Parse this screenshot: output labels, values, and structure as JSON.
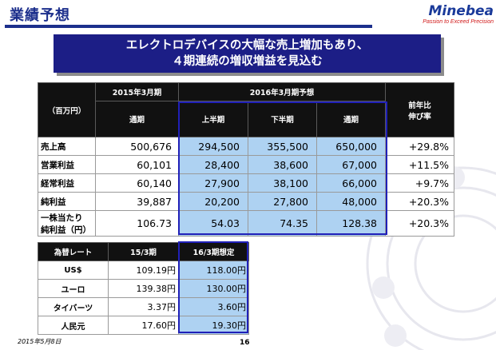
{
  "page": {
    "title": "業績予想",
    "headline_line1": "エレクトロデバイスの大幅な売上増加もあり、",
    "headline_line2": "４期連続の増収増益を見込む",
    "date": "2015年5月8日",
    "page_number": "16"
  },
  "logo": {
    "name": "Minebea",
    "tagline": "Passion to Exceed Precision"
  },
  "main_table": {
    "unit_header": "（百万円）",
    "actual_header": "2015年3月期",
    "forecast_header": "2016年3月期予想",
    "sub_headers": [
      "通期",
      "上半期",
      "下半期",
      "通期"
    ],
    "change_header_line1": "前年比",
    "change_header_line2": "伸び率",
    "rows": [
      {
        "label": "売上高",
        "label2": "",
        "actual": "500,676",
        "h1": "294,500",
        "h2": "355,500",
        "full": "650,000",
        "change": "+29.8%"
      },
      {
        "label": "営業利益",
        "label2": "",
        "actual": "60,101",
        "h1": "28,400",
        "h2": "38,600",
        "full": "67,000",
        "change": "+11.5%"
      },
      {
        "label": "経常利益",
        "label2": "",
        "actual": "60,140",
        "h1": "27,900",
        "h2": "38,100",
        "full": "66,000",
        "change": "+9.7%"
      },
      {
        "label": "純利益",
        "label2": "",
        "actual": "39,887",
        "h1": "20,200",
        "h2": "27,800",
        "full": "48,000",
        "change": "+20.3%"
      },
      {
        "label": "一株当たり",
        "label2": "純利益（円）",
        "actual": "106.73",
        "h1": "54.03",
        "h2": "74.35",
        "full": "128.38",
        "change": "+20.3%"
      }
    ]
  },
  "fx_table": {
    "headers": [
      "為替レート",
      "15/3期",
      "16/3期想定"
    ],
    "rows": [
      {
        "label": "US$",
        "actual": "109.19円",
        "forecast": "118.00円"
      },
      {
        "label": "ユーロ",
        "actual": "139.38円",
        "forecast": "130.00円"
      },
      {
        "label": "タイバーツ",
        "actual": "3.37円",
        "forecast": "3.60円"
      },
      {
        "label": "人民元",
        "actual": "17.60円",
        "forecast": "19.30円"
      }
    ]
  },
  "colors": {
    "accent": "#1c2f8c",
    "headline_bg": "#1c1e86",
    "forecast_cell": "#aed2f2",
    "header_bg": "#111111",
    "frame": "#2020b8",
    "logo_red": "#d01818"
  }
}
